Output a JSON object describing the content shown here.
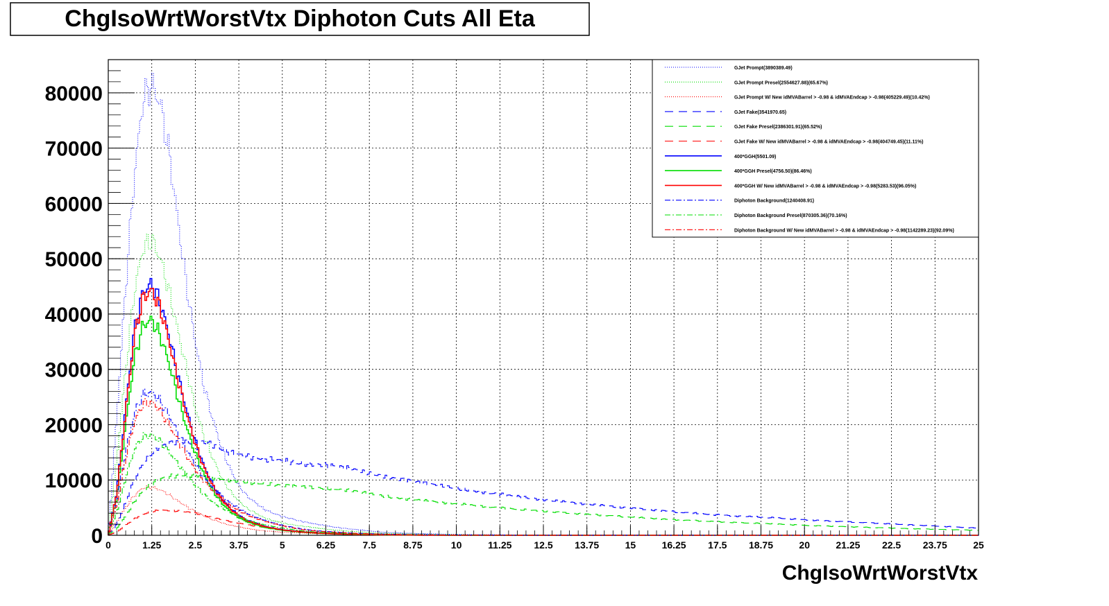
{
  "chart_data": {
    "type": "line",
    "title": "ChgIsoWrtWorstVtx Diphoton Cuts All Eta",
    "xlabel": "ChgIsoWrtWorstVtx",
    "ylabel": "",
    "xlim": [
      0,
      25
    ],
    "ylim": [
      0,
      86000
    ],
    "grid": true,
    "legend_position": "top-right",
    "x_ticks": [
      "0",
      "1.25",
      "2.5",
      "3.75",
      "5",
      "6.25",
      "7.5",
      "8.75",
      "10",
      "11.25",
      "12.5",
      "13.75",
      "15",
      "16.25",
      "17.5",
      "18.75",
      "20",
      "21.25",
      "22.5",
      "23.75",
      "25"
    ],
    "y_ticks": [
      "0",
      "10000",
      "20000",
      "30000",
      "40000",
      "50000",
      "60000",
      "70000",
      "80000"
    ],
    "series": [
      {
        "name": "GJet Prompt(3890389.49)",
        "color": "#0000ff",
        "dash": "1,2",
        "x": [
          0,
          0.25,
          0.5,
          0.75,
          1.0,
          1.25,
          1.5,
          1.75,
          2.0,
          2.25,
          2.5,
          2.75,
          3.0,
          3.25,
          3.5,
          3.75,
          4.0,
          4.5,
          5.0,
          5.5,
          6.0,
          6.5,
          7.0,
          7.5,
          8.0,
          9.0,
          10.0,
          12.0,
          25.0
        ],
        "y": [
          0,
          22000,
          45000,
          65000,
          79000,
          81500,
          78000,
          69000,
          57000,
          45000,
          35000,
          27000,
          21000,
          16000,
          12000,
          9000,
          7000,
          4600,
          3400,
          2600,
          2000,
          1500,
          1100,
          800,
          500,
          300,
          150,
          50,
          0
        ]
      },
      {
        "name": "GJet Prompt Presel(2554627.88)(65.67%)",
        "color": "#00dd00",
        "dash": "1,2",
        "x": [
          0,
          0.25,
          0.5,
          0.75,
          1.0,
          1.25,
          1.5,
          1.75,
          2.0,
          2.25,
          2.5,
          2.75,
          3.0,
          3.25,
          3.5,
          3.75,
          4.0,
          4.5,
          5.0,
          5.5,
          6.0,
          6.5,
          7.0,
          7.5,
          8.0,
          9.0,
          10.0,
          12.0,
          25.0
        ],
        "y": [
          0,
          14000,
          30000,
          44000,
          52000,
          53500,
          50000,
          44000,
          37000,
          30000,
          23000,
          18000,
          14000,
          10500,
          8000,
          6200,
          4800,
          3100,
          2200,
          1700,
          1300,
          950,
          700,
          500,
          350,
          200,
          100,
          30,
          0
        ]
      },
      {
        "name": "GJet Prompt W/ New idMVABarrel > -0.98 & idMVAEndcap > -0.98(405229.49)(10.42%)",
        "color": "#ff0000",
        "dash": "1,2",
        "x": [
          0,
          0.25,
          0.5,
          0.75,
          1.0,
          1.25,
          1.5,
          1.75,
          2.0,
          2.25,
          2.5,
          2.75,
          3.0,
          3.5,
          4.0,
          4.5,
          5.0,
          6.0,
          7.0,
          8.0,
          10.0,
          25.0
        ],
        "y": [
          0,
          2500,
          5000,
          7200,
          8600,
          8700,
          8200,
          7300,
          6200,
          5200,
          4300,
          3500,
          2800,
          1800,
          1200,
          800,
          550,
          300,
          150,
          80,
          20,
          0
        ]
      },
      {
        "name": "GJet Fake(3541970.65)",
        "color": "#0000ff",
        "dash": "12,8",
        "x": [
          0,
          0.25,
          0.5,
          0.75,
          1.0,
          1.25,
          1.5,
          1.75,
          2.0,
          2.25,
          2.5,
          2.75,
          3.0,
          3.5,
          4.0,
          4.5,
          5.0,
          5.5,
          6.0,
          6.5,
          7.0,
          7.5,
          8.0,
          9.0,
          10.0,
          11.0,
          12.0,
          13.0,
          14.0,
          15.0,
          16.0,
          17.0,
          18.0,
          19.0,
          20.0,
          21.0,
          22.0,
          23.0,
          24.0,
          25.0
        ],
        "y": [
          0,
          2000,
          6000,
          10000,
          13000,
          15000,
          16000,
          16500,
          16800,
          17000,
          17100,
          16800,
          16300,
          15000,
          14200,
          13800,
          13500,
          13000,
          12800,
          12500,
          12000,
          11200,
          10500,
          9500,
          8500,
          7600,
          6800,
          6100,
          5500,
          4900,
          4400,
          3900,
          3500,
          3200,
          2800,
          2500,
          2200,
          1900,
          1600,
          1300
        ]
      },
      {
        "name": "GJet Fake Presel(2386301.91)(65.52%)",
        "color": "#00dd00",
        "dash": "12,8",
        "x": [
          0,
          0.25,
          0.5,
          0.75,
          1.0,
          1.25,
          1.5,
          1.75,
          2.0,
          2.25,
          2.5,
          2.75,
          3.0,
          3.5,
          4.0,
          4.5,
          5.0,
          5.5,
          6.0,
          6.5,
          7.0,
          7.5,
          8.0,
          9.0,
          10.0,
          11.0,
          12.0,
          13.0,
          14.0,
          15.0,
          16.0,
          17.0,
          18.0,
          19.0,
          20.0,
          21.0,
          22.0,
          23.0,
          24.0,
          25.0
        ],
        "y": [
          0,
          1200,
          3500,
          6000,
          8000,
          9300,
          10200,
          10600,
          10800,
          10900,
          10900,
          10700,
          10400,
          10000,
          9600,
          9300,
          9000,
          8800,
          8600,
          8400,
          8100,
          7500,
          7000,
          6300,
          5700,
          5100,
          4600,
          4100,
          3700,
          3300,
          2900,
          2600,
          2300,
          2100,
          1800,
          1600,
          1400,
          1200,
          1050,
          900
        ]
      },
      {
        "name": "GJet Fake W/ New idMVABarrel > -0.98 & idMVAEndcap > -0.98(404749.45)(11.11%)",
        "color": "#ff0000",
        "dash": "12,8",
        "x": [
          0,
          0.25,
          0.5,
          0.75,
          1.0,
          1.25,
          1.5,
          1.75,
          2.0,
          2.25,
          2.5,
          2.75,
          3.0,
          3.5,
          4.0,
          4.5,
          5.0,
          5.5,
          6.0,
          6.5,
          7.0,
          8.0,
          9.0,
          10.0,
          12.0,
          25.0
        ],
        "y": [
          0,
          600,
          1800,
          3000,
          3800,
          4300,
          4500,
          4500,
          4400,
          4200,
          4000,
          3600,
          3200,
          2500,
          1900,
          1400,
          1000,
          750,
          550,
          400,
          300,
          150,
          80,
          40,
          10,
          0
        ]
      },
      {
        "name": "400*GGH(5501.09)",
        "color": "#0000ff",
        "dash": "",
        "x": [
          0,
          0.25,
          0.5,
          0.75,
          1.0,
          1.25,
          1.5,
          1.75,
          2.0,
          2.25,
          2.5,
          2.75,
          3.0,
          3.25,
          3.5,
          3.75,
          4.0,
          4.5,
          5.0,
          5.5,
          6.0,
          6.5,
          7.0,
          7.5,
          8.0,
          9.0,
          10.0,
          12.0,
          25.0
        ],
        "y": [
          0,
          8000,
          23000,
          37000,
          44000,
          45500,
          42000,
          36000,
          29000,
          22500,
          17000,
          12500,
          9200,
          6700,
          4900,
          3600,
          2700,
          1600,
          1000,
          650,
          420,
          270,
          170,
          110,
          70,
          30,
          10,
          0,
          0
        ]
      },
      {
        "name": "400*GGH Presel(4756.50)(86.46%)",
        "color": "#00dd00",
        "dash": "",
        "x": [
          0,
          0.25,
          0.5,
          0.75,
          1.0,
          1.25,
          1.5,
          1.75,
          2.0,
          2.25,
          2.5,
          2.75,
          3.0,
          3.25,
          3.5,
          3.75,
          4.0,
          4.5,
          5.0,
          5.5,
          6.0,
          6.5,
          7.0,
          7.5,
          8.0,
          9.0,
          10.0,
          12.0,
          25.0
        ],
        "y": [
          0,
          7000,
          20000,
          32000,
          38000,
          39000,
          36000,
          31000,
          25000,
          19500,
          14800,
          11000,
          8100,
          5900,
          4300,
          3200,
          2400,
          1400,
          900,
          580,
          380,
          240,
          150,
          100,
          60,
          25,
          10,
          0,
          0
        ]
      },
      {
        "name": "400*GGH W/ New idMVABarrel > -0.98 & idMVAEndcap > -0.98(5283.53)(96.05%)",
        "color": "#ff0000",
        "dash": "",
        "x": [
          0,
          0.25,
          0.5,
          0.75,
          1.0,
          1.25,
          1.5,
          1.75,
          2.0,
          2.25,
          2.5,
          2.75,
          3.0,
          3.25,
          3.5,
          3.75,
          4.0,
          4.5,
          5.0,
          5.5,
          6.0,
          6.5,
          7.0,
          7.5,
          8.0,
          9.0,
          10.0,
          12.0,
          25.0
        ],
        "y": [
          0,
          7800,
          22300,
          36000,
          43000,
          44300,
          41000,
          35000,
          28200,
          21900,
          16600,
          12200,
          9000,
          6500,
          4800,
          3500,
          2600,
          1550,
          980,
          630,
          410,
          260,
          165,
          105,
          65,
          28,
          10,
          0,
          0
        ]
      },
      {
        "name": "Diphoton Background(1240408.91)",
        "color": "#0000ff",
        "dash": "8,3,2,3",
        "x": [
          0,
          0.25,
          0.5,
          0.75,
          1.0,
          1.25,
          1.5,
          1.75,
          2.0,
          2.25,
          2.5,
          2.75,
          3.0,
          3.5,
          4.0,
          4.5,
          5.0,
          5.5,
          6.0,
          7.0,
          8.0,
          9.0,
          10.0,
          12.0,
          25.0
        ],
        "y": [
          0,
          6000,
          15000,
          22000,
          25500,
          25800,
          24300,
          21500,
          18500,
          15500,
          12800,
          10500,
          8600,
          5800,
          3900,
          2700,
          1800,
          1200,
          800,
          400,
          200,
          100,
          50,
          10,
          0
        ]
      },
      {
        "name": "Diphoton Background Presel(870305.36)(70.16%)",
        "color": "#00dd00",
        "dash": "8,3,2,3",
        "x": [
          0,
          0.25,
          0.5,
          0.75,
          1.0,
          1.25,
          1.5,
          1.75,
          2.0,
          2.25,
          2.5,
          2.75,
          3.0,
          3.5,
          4.0,
          4.5,
          5.0,
          5.5,
          6.0,
          7.0,
          8.0,
          9.0,
          10.0,
          12.0,
          25.0
        ],
        "y": [
          0,
          4200,
          10500,
          15500,
          17900,
          18100,
          17000,
          15100,
          13000,
          10900,
          9000,
          7400,
          6000,
          4100,
          2700,
          1900,
          1300,
          850,
          560,
          280,
          140,
          70,
          35,
          10,
          0
        ]
      },
      {
        "name": "Diphoton Background W/ New idMVABarrel > -0.98 & idMVAEndcap > -0.98(1142289.23)(92.09%)",
        "color": "#ff0000",
        "dash": "8,3,2,3",
        "x": [
          0,
          0.25,
          0.5,
          0.75,
          1.0,
          1.25,
          1.5,
          1.75,
          2.0,
          2.25,
          2.5,
          2.75,
          3.0,
          3.5,
          4.0,
          4.5,
          5.0,
          5.5,
          6.0,
          7.0,
          8.0,
          9.0,
          10.0,
          12.0,
          25.0
        ],
        "y": [
          0,
          5600,
          14000,
          20500,
          23800,
          24000,
          22600,
          20000,
          17200,
          14400,
          11900,
          9800,
          8000,
          5400,
          3600,
          2500,
          1700,
          1100,
          740,
          370,
          185,
          90,
          45,
          10,
          0
        ]
      }
    ]
  }
}
